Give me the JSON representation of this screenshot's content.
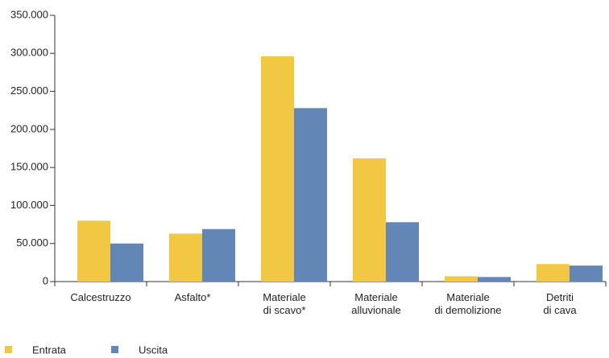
{
  "chart_data": {
    "type": "bar",
    "categories": [
      [
        "Calcestruzzo"
      ],
      [
        "Asfalto*"
      ],
      [
        "Materiale",
        "di scavo*"
      ],
      [
        "Materiale",
        "alluvionale"
      ],
      [
        "Materiale",
        "di demolizione"
      ],
      [
        "Detriti",
        "di cava"
      ]
    ],
    "series": [
      {
        "name": "Entrata",
        "color": "#f2c744",
        "values": [
          80000,
          63000,
          296000,
          162000,
          7000,
          23000
        ]
      },
      {
        "name": "Uscita",
        "color": "#6286b5",
        "values": [
          50000,
          69000,
          228000,
          78000,
          6000,
          21000
        ]
      }
    ],
    "ylim": [
      0,
      350000
    ],
    "yticks": [
      0,
      {
        "value": 50000,
        "label": "50.000"
      },
      {
        "value": 100000,
        "label": "100.000"
      },
      {
        "value": 150000,
        "label": "150.000"
      },
      {
        "value": 200000,
        "label": "200.000"
      },
      {
        "value": 250000,
        "label": "250.000"
      },
      {
        "value": 300000,
        "label": "300.000"
      },
      {
        "value": 350000,
        "label": "350.000"
      }
    ],
    "grid": false,
    "legend": "bottom-left"
  }
}
